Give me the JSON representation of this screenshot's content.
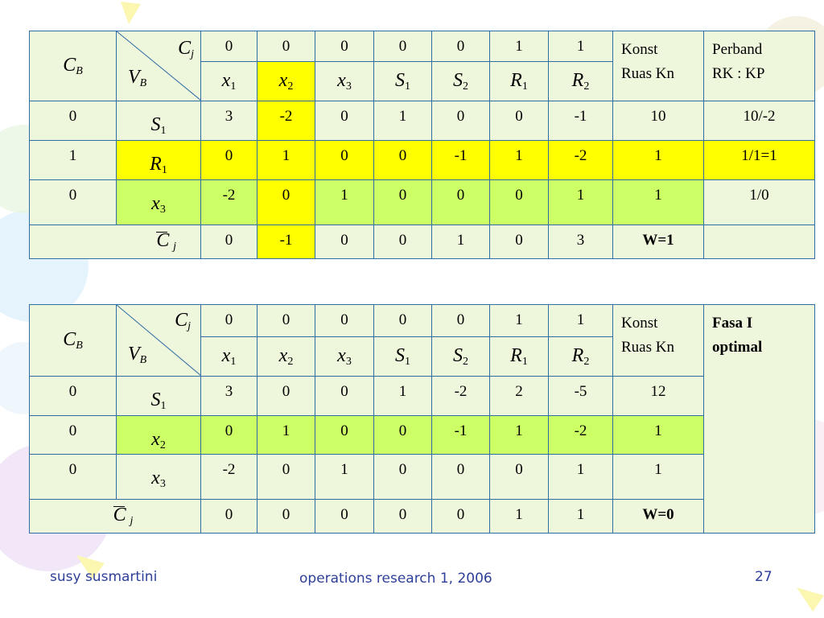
{
  "footer": {
    "author": "susy susmartini",
    "course": "operations research 1, 2006",
    "page": "27"
  },
  "header_symbols": {
    "cb": "C",
    "cb_sub": "B",
    "vb": "V",
    "vb_sub": "B",
    "cj": "C",
    "cj_sub": "j"
  },
  "columns": [
    {
      "v": "x",
      "s": "1"
    },
    {
      "v": "x",
      "s": "2"
    },
    {
      "v": "x",
      "s": "3"
    },
    {
      "v": "S",
      "s": "1"
    },
    {
      "v": "S",
      "s": "2"
    },
    {
      "v": "R",
      "s": "1"
    },
    {
      "v": "R",
      "s": "2"
    }
  ],
  "table1": {
    "cj": [
      "0",
      "0",
      "0",
      "0",
      "0",
      "1",
      "1"
    ],
    "konst_label_1": "Konst",
    "konst_label_2": "Ruas Kn",
    "perband_label_1": "Perband",
    "perband_label_2": "RK : KP",
    "rows": [
      {
        "cb": "0",
        "basis_v": "S",
        "basis_s": "1",
        "vals": [
          "3",
          "-2",
          "0",
          "1",
          "0",
          "0",
          "-1"
        ],
        "konst": "10",
        "ratio": "10/-2"
      },
      {
        "cb": "1",
        "basis_v": "R",
        "basis_s": "1",
        "vals": [
          "0",
          "1",
          "0",
          "0",
          "-1",
          "1",
          "-2"
        ],
        "konst": "1",
        "ratio": "1/1=1"
      },
      {
        "cb": "0",
        "basis_v": "x",
        "basis_s": "3",
        "vals": [
          "-2",
          "0",
          "1",
          "0",
          "0",
          "0",
          "1"
        ],
        "konst": "1",
        "ratio": "1/0"
      }
    ],
    "cbar": [
      "0",
      "-1",
      "0",
      "0",
      "1",
      "0",
      "3"
    ],
    "w": "W=1"
  },
  "table2": {
    "cj": [
      "0",
      "0",
      "0",
      "0",
      "0",
      "1",
      "1"
    ],
    "konst_label_1": "Konst",
    "konst_label_2": "Ruas Kn",
    "fasa_1": "Fasa I",
    "fasa_2": "optimal",
    "rows": [
      {
        "cb": "0",
        "basis_v": "S",
        "basis_s": "1",
        "vals": [
          "3",
          "0",
          "0",
          "1",
          "-2",
          "2",
          "-5"
        ],
        "konst": "12"
      },
      {
        "cb": "0",
        "basis_v": "x",
        "basis_s": "2",
        "vals": [
          "0",
          "1",
          "0",
          "0",
          "-1",
          "1",
          "-2"
        ],
        "konst": "1"
      },
      {
        "cb": "0",
        "basis_v": "x",
        "basis_s": "3",
        "vals": [
          "-2",
          "0",
          "1",
          "0",
          "0",
          "0",
          "1"
        ],
        "konst": "1"
      }
    ],
    "cbar": [
      "0",
      "0",
      "0",
      "0",
      "0",
      "1",
      "1"
    ],
    "w": "W=0"
  }
}
